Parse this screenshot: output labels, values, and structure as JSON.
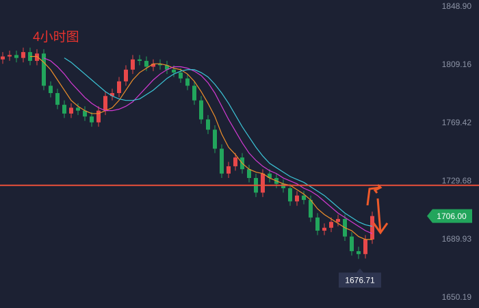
{
  "chart_data": {
    "type": "candlestick",
    "title": "4小时图",
    "ylim": [
      1643.18,
      1853.58
    ],
    "yticks": [
      {
        "value": 1848.9,
        "label": "1848.90"
      },
      1809.16,
      1769.42,
      1729.68,
      1689.93,
      1650.19
    ],
    "grid": false,
    "up_color": "#e8484a",
    "down_color": "#22a55c",
    "open": [
      1813,
      1815,
      1816,
      1814,
      1818,
      1812,
      1817,
      1795,
      1790,
      1782,
      1776,
      1780,
      1778,
      1774,
      1770,
      1778,
      1788,
      1790,
      1798,
      1806,
      1813,
      1812,
      1808,
      1810,
      1809,
      1806,
      1804,
      1800,
      1795,
      1785,
      1772,
      1765,
      1752,
      1735,
      1740,
      1746,
      1738,
      1732,
      1722,
      1735,
      1732,
      1728,
      1725,
      1716,
      1720,
      1717,
      1705,
      1696,
      1698,
      1702,
      1704,
      1692,
      1682,
      1680,
      1690
    ],
    "high": [
      1818,
      1819,
      1819,
      1821,
      1821,
      1820,
      1820,
      1798,
      1793,
      1785,
      1783,
      1783,
      1781,
      1777,
      1781,
      1791,
      1793,
      1801,
      1809,
      1816,
      1816,
      1815,
      1813,
      1813,
      1812,
      1809,
      1807,
      1803,
      1798,
      1788,
      1775,
      1768,
      1755,
      1743,
      1749,
      1749,
      1741,
      1735,
      1738,
      1738,
      1735,
      1731,
      1728,
      1723,
      1723,
      1720,
      1708,
      1701,
      1705,
      1707,
      1707,
      1695,
      1685,
      1693,
      1709
    ],
    "low": [
      1810,
      1812,
      1811,
      1811,
      1809,
      1809,
      1792,
      1787,
      1779,
      1773,
      1773,
      1775,
      1771,
      1767,
      1767,
      1775,
      1785,
      1787,
      1795,
      1803,
      1809,
      1805,
      1805,
      1806,
      1803,
      1801,
      1797,
      1792,
      1782,
      1769,
      1762,
      1749,
      1732,
      1732,
      1737,
      1735,
      1729,
      1719,
      1719,
      1729,
      1725,
      1722,
      1713,
      1713,
      1714,
      1702,
      1693,
      1693,
      1695,
      1699,
      1689,
      1679,
      1676.71,
      1677,
      1687
    ],
    "close": [
      1815,
      1816,
      1814,
      1818,
      1812,
      1817,
      1795,
      1790,
      1782,
      1776,
      1780,
      1778,
      1774,
      1770,
      1778,
      1788,
      1790,
      1798,
      1806,
      1813,
      1812,
      1808,
      1810,
      1809,
      1806,
      1804,
      1800,
      1795,
      1785,
      1772,
      1765,
      1752,
      1735,
      1740,
      1746,
      1738,
      1732,
      1722,
      1735,
      1732,
      1728,
      1725,
      1716,
      1720,
      1717,
      1705,
      1696,
      1698,
      1702,
      1704,
      1692,
      1682,
      1680,
      1690,
      1706
    ],
    "series": [
      {
        "color": "#f0902a",
        "values": [
          null,
          null,
          null,
          null,
          1815,
          1815,
          1811,
          1806,
          1799,
          1792,
          1785,
          1781,
          1778,
          1776,
          1776,
          1778,
          1780,
          1785,
          1792,
          1799,
          1804,
          1807,
          1810,
          1810,
          1809,
          1807,
          1806,
          1803,
          1798,
          1791,
          1783,
          1774,
          1762,
          1753,
          1748,
          1742,
          1738,
          1736,
          1735,
          1732,
          1730,
          1728,
          1727,
          1724,
          1721,
          1717,
          1711,
          1707,
          1704,
          1701,
          1698,
          1696,
          1692,
          1690,
          1690
        ]
      },
      {
        "color": "#d43ad4",
        "values": [
          null,
          null,
          null,
          null,
          null,
          null,
          1814,
          1812,
          1808,
          1803,
          1797,
          1792,
          1787,
          1783,
          1780,
          1778,
          1778,
          1779,
          1781,
          1784,
          1789,
          1794,
          1799,
          1803,
          1806,
          1808,
          1808,
          1807,
          1805,
          1802,
          1797,
          1790,
          1781,
          1772,
          1764,
          1756,
          1749,
          1744,
          1740,
          1737,
          1735,
          1732,
          1730,
          1728,
          1725,
          1723,
          1720,
          1716,
          1712,
          1708,
          1705,
          1702,
          1699,
          1696,
          1694
        ]
      },
      {
        "color": "#3cc6d8",
        "values": [
          null,
          null,
          null,
          null,
          null,
          null,
          null,
          null,
          null,
          1814,
          1811,
          1807,
          1803,
          1799,
          1795,
          1791,
          1788,
          1786,
          1785,
          1785,
          1786,
          1789,
          1792,
          1796,
          1800,
          1803,
          1805,
          1806,
          1806,
          1804,
          1801,
          1796,
          1790,
          1783,
          1775,
          1767,
          1760,
          1753,
          1747,
          1742,
          1739,
          1736,
          1733,
          1731,
          1729,
          1726,
          1723,
          1720,
          1716,
          1712,
          1708,
          1705,
          1702,
          1700,
          1699
        ]
      }
    ],
    "hline": {
      "value": 1727,
      "color": "#e8503a"
    },
    "last_price": {
      "value": 1706,
      "label": "1706.00",
      "color": "#22a55c"
    },
    "low_label": 1676.71
  }
}
